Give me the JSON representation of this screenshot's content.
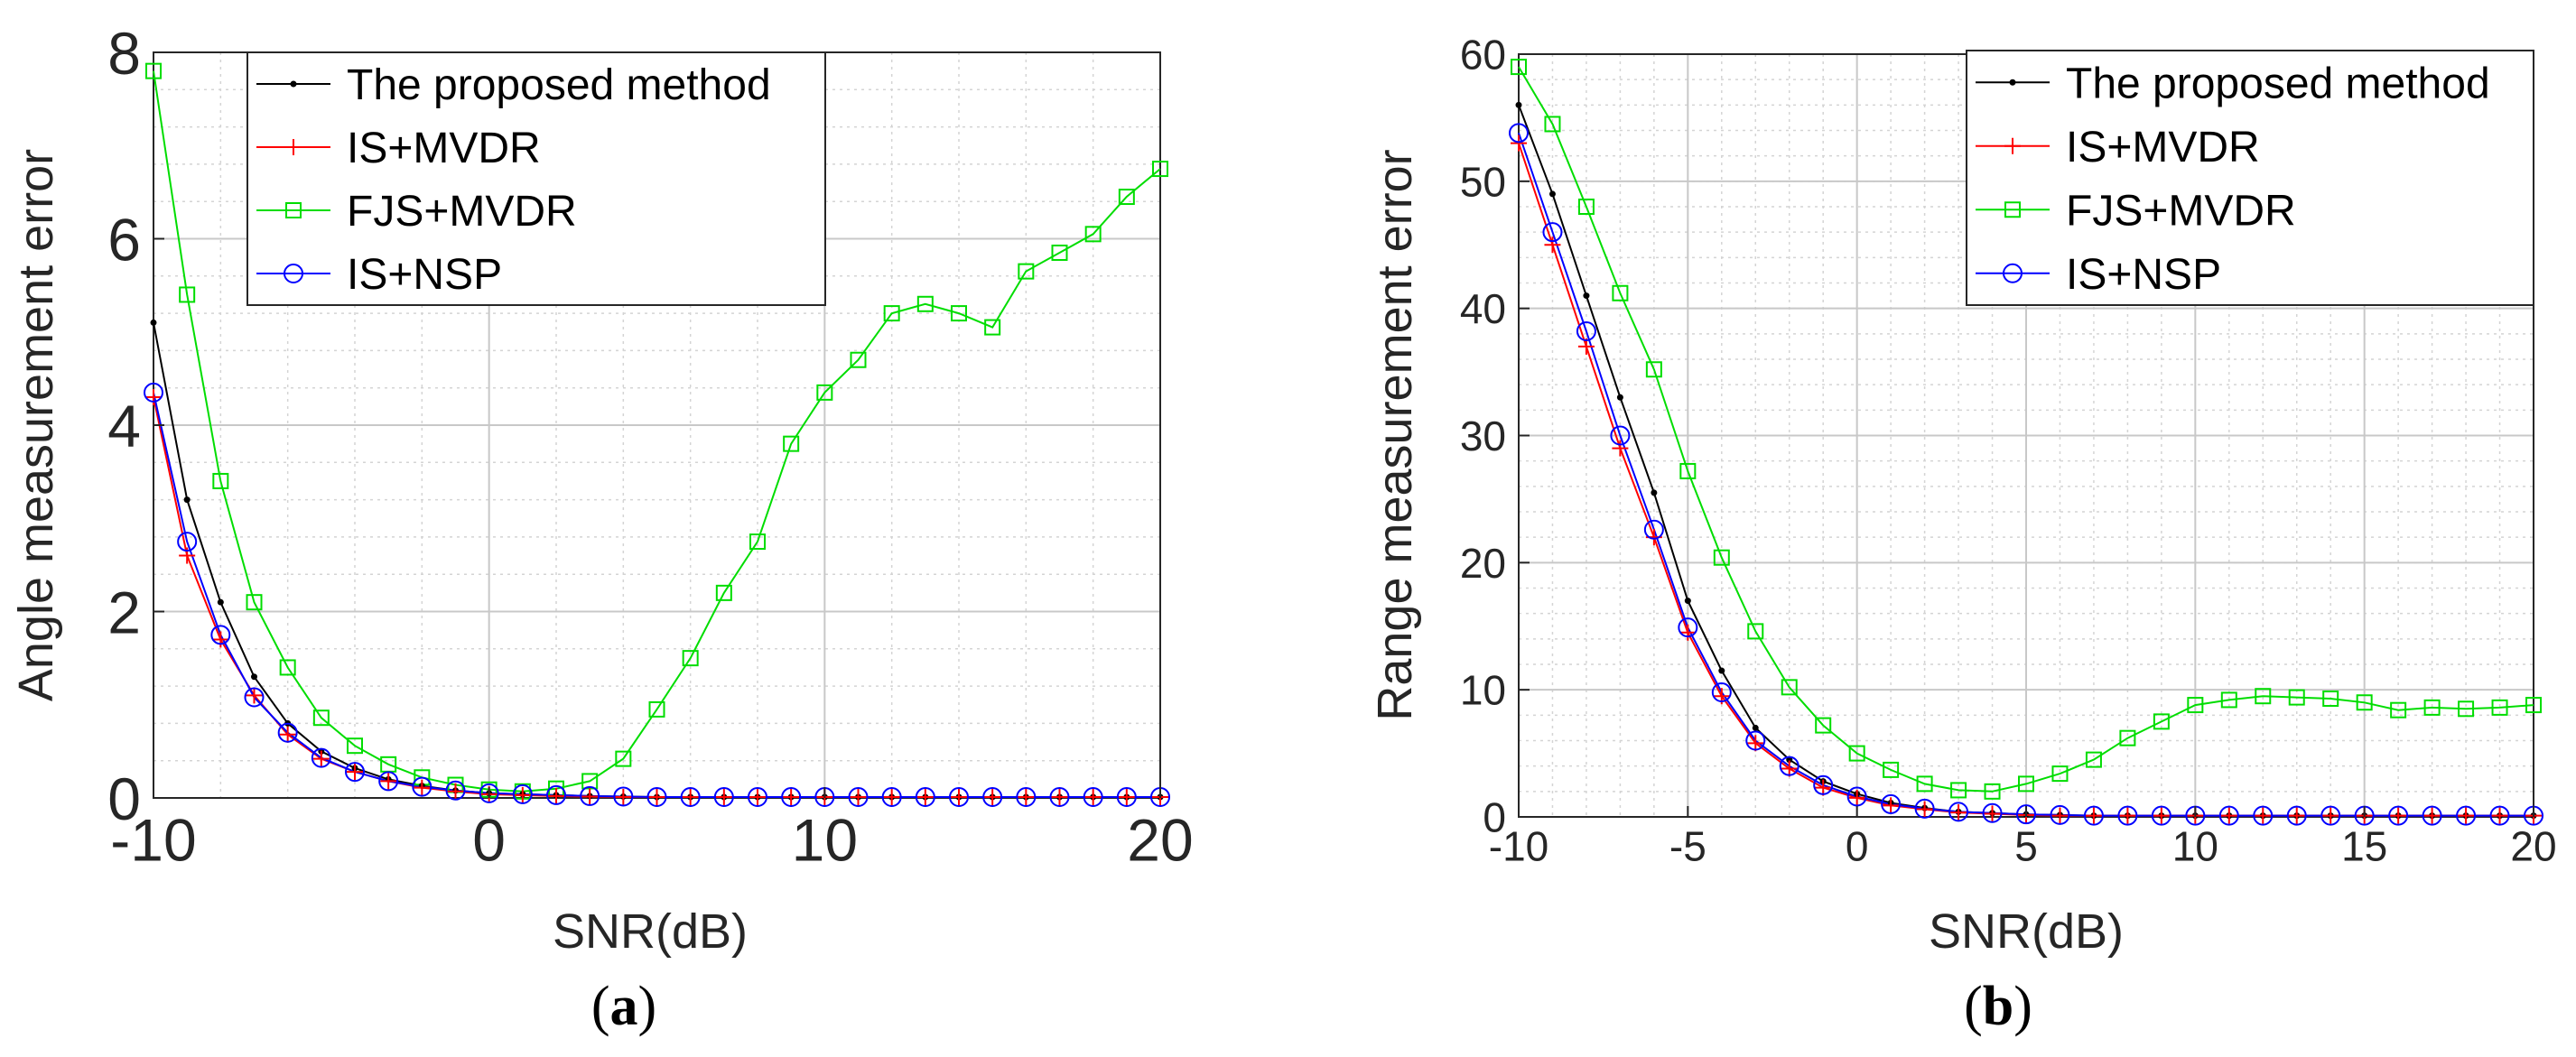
{
  "chart_data": [
    {
      "type": "line",
      "caption": "a",
      "title": "",
      "xlabel": "SNR(dB)",
      "ylabel": "Angle measurement error",
      "xlim": [
        -10,
        20
      ],
      "ylim": [
        0,
        8
      ],
      "xticks": [
        -10,
        0,
        10,
        20
      ],
      "yticks": [
        0,
        2,
        4,
        6,
        8
      ],
      "grid": true,
      "legend_position": "top-left",
      "x": [
        -10,
        -9,
        -8,
        -7,
        -6,
        -5,
        -4,
        -3,
        -2,
        -1,
        0,
        1,
        2,
        3,
        4,
        5,
        6,
        7,
        8,
        9,
        10,
        11,
        12,
        13,
        14,
        15,
        16,
        17,
        18,
        19,
        20
      ],
      "series": [
        {
          "name": "The proposed method",
          "color": "#000000",
          "marker": "dot",
          "values": [
            5.1,
            3.2,
            2.1,
            1.3,
            0.8,
            0.5,
            0.32,
            0.2,
            0.13,
            0.08,
            0.05,
            0.04,
            0.03,
            0.02,
            0.015,
            0.01,
            0.01,
            0.01,
            0.01,
            0.01,
            0.01,
            0.01,
            0.01,
            0.01,
            0.01,
            0.01,
            0.01,
            0.01,
            0.01,
            0.01,
            0.01
          ]
        },
        {
          "name": "IS+MVDR",
          "color": "#ff0000",
          "marker": "plus",
          "values": [
            4.3,
            2.6,
            1.7,
            1.1,
            0.68,
            0.42,
            0.28,
            0.18,
            0.11,
            0.07,
            0.04,
            0.03,
            0.02,
            0.015,
            0.01,
            0.01,
            0.01,
            0.01,
            0.01,
            0.01,
            0.01,
            0.01,
            0.01,
            0.01,
            0.01,
            0.01,
            0.01,
            0.01,
            0.01,
            0.01,
            0.01
          ]
        },
        {
          "name": "FJS+MVDR",
          "color": "#00dd00",
          "marker": "square",
          "values": [
            7.8,
            5.4,
            3.4,
            2.1,
            1.4,
            0.86,
            0.56,
            0.36,
            0.22,
            0.14,
            0.09,
            0.07,
            0.1,
            0.18,
            0.42,
            0.95,
            1.5,
            2.2,
            2.75,
            3.8,
            4.35,
            4.7,
            5.2,
            5.3,
            5.2,
            5.05,
            5.65,
            5.85,
            6.05,
            6.45,
            6.75
          ]
        },
        {
          "name": "IS+NSP",
          "color": "#0000ff",
          "marker": "circle",
          "values": [
            4.35,
            2.75,
            1.75,
            1.08,
            0.7,
            0.43,
            0.28,
            0.18,
            0.12,
            0.08,
            0.05,
            0.04,
            0.03,
            0.02,
            0.015,
            0.01,
            0.01,
            0.01,
            0.01,
            0.01,
            0.01,
            0.01,
            0.01,
            0.01,
            0.01,
            0.01,
            0.01,
            0.01,
            0.01,
            0.01,
            0.01
          ]
        }
      ]
    },
    {
      "type": "line",
      "caption": "b",
      "title": "",
      "xlabel": "SNR(dB)",
      "ylabel": "Range measurement error",
      "xlim": [
        -10,
        20
      ],
      "ylim": [
        0,
        60
      ],
      "xticks": [
        -10,
        -5,
        0,
        5,
        10,
        15,
        20
      ],
      "yticks": [
        0,
        10,
        20,
        30,
        40,
        50,
        60
      ],
      "grid": true,
      "legend_position": "top-right",
      "x": [
        -10,
        -9,
        -8,
        -7,
        -6,
        -5,
        -4,
        -3,
        -2,
        -1,
        0,
        1,
        2,
        3,
        4,
        5,
        6,
        7,
        8,
        9,
        10,
        11,
        12,
        13,
        14,
        15,
        16,
        17,
        18,
        19,
        20
      ],
      "series": [
        {
          "name": "The proposed method",
          "color": "#000000",
          "marker": "dot",
          "values": [
            56,
            49,
            41,
            33,
            25.5,
            17,
            11.5,
            7,
            4.5,
            2.8,
            1.8,
            1.1,
            0.7,
            0.4,
            0.3,
            0.2,
            0.15,
            0.1,
            0.1,
            0.1,
            0.1,
            0.1,
            0.1,
            0.1,
            0.1,
            0.1,
            0.1,
            0.1,
            0.1,
            0.1,
            0.1
          ]
        },
        {
          "name": "IS+MVDR",
          "color": "#ff0000",
          "marker": "plus",
          "values": [
            53,
            45,
            37,
            29,
            22,
            14.5,
            9.5,
            5.8,
            3.8,
            2.3,
            1.5,
            0.9,
            0.6,
            0.35,
            0.25,
            0.15,
            0.1,
            0.1,
            0.1,
            0.1,
            0.1,
            0.1,
            0.1,
            0.1,
            0.1,
            0.1,
            0.1,
            0.1,
            0.1,
            0.1,
            0.1
          ]
        },
        {
          "name": "FJS+MVDR",
          "color": "#00dd00",
          "marker": "square",
          "values": [
            59,
            54.5,
            48,
            41.2,
            35.2,
            27.2,
            20.4,
            14.6,
            10.2,
            7.2,
            5,
            3.7,
            2.6,
            2.1,
            2,
            2.6,
            3.4,
            4.5,
            6.2,
            7.5,
            8.8,
            9.2,
            9.5,
            9.4,
            9.3,
            9,
            8.4,
            8.6,
            8.5,
            8.6,
            8.8
          ]
        },
        {
          "name": "IS+NSP",
          "color": "#0000ff",
          "marker": "circle",
          "values": [
            53.8,
            46,
            38.2,
            30,
            22.6,
            14.9,
            9.8,
            6,
            4,
            2.5,
            1.6,
            1,
            0.65,
            0.4,
            0.3,
            0.2,
            0.15,
            0.1,
            0.1,
            0.1,
            0.1,
            0.1,
            0.1,
            0.1,
            0.1,
            0.1,
            0.1,
            0.1,
            0.1,
            0.1,
            0.1
          ]
        }
      ]
    }
  ]
}
